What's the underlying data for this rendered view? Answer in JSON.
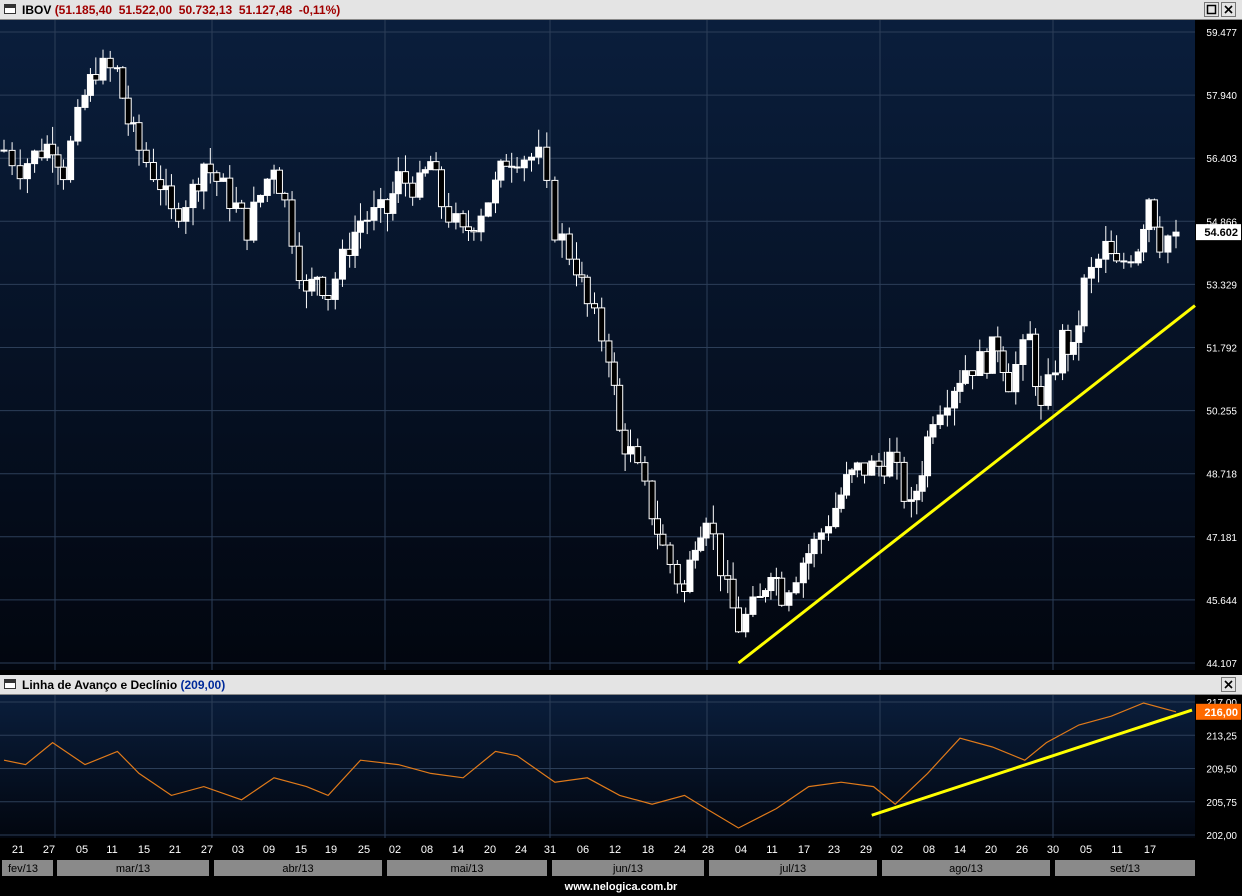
{
  "price_panel": {
    "symbol": "IBOV",
    "quote_text": "(51.185,40  51.522,00  50.732,13  51.127,48  -0,11%)",
    "price_badge": "54.602",
    "y_ticks": [
      "59.477",
      "57.940",
      "56.403",
      "54.866",
      "53.329",
      "51.792",
      "50.255",
      "48.718",
      "47.181",
      "45.644",
      "44.107"
    ]
  },
  "indicator_panel": {
    "title": "Linha de Avanço e Declínio",
    "value_text": "(209,00)",
    "value_badge": "216,00",
    "y_ticks": [
      "217,00",
      "213,25",
      "209,50",
      "205,75",
      "202,00"
    ]
  },
  "x_axis": {
    "day_labels": [
      "21",
      "27",
      "05",
      "11",
      "15",
      "21",
      "27",
      "03",
      "09",
      "15",
      "19",
      "25",
      "02",
      "08",
      "14",
      "20",
      "24",
      "31",
      "06",
      "12",
      "18",
      "24",
      "28",
      "04",
      "11",
      "17",
      "23",
      "29",
      "02",
      "08",
      "14",
      "20",
      "26",
      "30",
      "05",
      "11",
      "17"
    ],
    "month_labels": [
      "fev/13",
      "mar/13",
      "abr/13",
      "mai/13",
      "jun/13",
      "jul/13",
      "ago/13",
      "set/13"
    ]
  },
  "footer": {
    "url": "www.nelogica.com.br"
  },
  "colors": {
    "trendline": "#ffff00",
    "indicator_line": "#e07a1a",
    "badge_bg": "#ff6a00"
  },
  "chart_data": [
    {
      "type": "candlestick",
      "ylim": [
        44107,
        59477
      ],
      "trendline": [
        {
          "date": "04/07",
          "value": 44107
        },
        {
          "date": "23/09",
          "value": 52450
        }
      ],
      "close_series": [
        {
          "x": "18/02",
          "y": 56600
        },
        {
          "x": "21/02",
          "y": 56200
        },
        {
          "x": "25/02",
          "y": 56600
        },
        {
          "x": "27/02",
          "y": 56800
        },
        {
          "x": "01/03",
          "y": 56100
        },
        {
          "x": "05/03",
          "y": 57900
        },
        {
          "x": "07/03",
          "y": 58600
        },
        {
          "x": "11/03",
          "y": 58500
        },
        {
          "x": "13/03",
          "y": 57300
        },
        {
          "x": "15/03",
          "y": 56600
        },
        {
          "x": "19/03",
          "y": 55800
        },
        {
          "x": "21/03",
          "y": 55000
        },
        {
          "x": "25/03",
          "y": 55600
        },
        {
          "x": "27/03",
          "y": 56300
        },
        {
          "x": "02/04",
          "y": 55200
        },
        {
          "x": "04/04",
          "y": 54700
        },
        {
          "x": "09/04",
          "y": 56300
        },
        {
          "x": "11/04",
          "y": 55300
        },
        {
          "x": "15/04",
          "y": 53000
        },
        {
          "x": "17/04",
          "y": 53600
        },
        {
          "x": "19/04",
          "y": 53100
        },
        {
          "x": "23/04",
          "y": 54300
        },
        {
          "x": "25/04",
          "y": 54900
        },
        {
          "x": "30/04",
          "y": 55100
        },
        {
          "x": "02/05",
          "y": 55900
        },
        {
          "x": "06/05",
          "y": 55700
        },
        {
          "x": "08/05",
          "y": 56300
        },
        {
          "x": "10/05",
          "y": 55300
        },
        {
          "x": "14/05",
          "y": 54500
        },
        {
          "x": "16/05",
          "y": 54900
        },
        {
          "x": "20/05",
          "y": 55700
        },
        {
          "x": "22/05",
          "y": 56400
        },
        {
          "x": "24/05",
          "y": 56500
        },
        {
          "x": "28/05",
          "y": 56400
        },
        {
          "x": "31/05",
          "y": 54700
        },
        {
          "x": "04/06",
          "y": 53800
        },
        {
          "x": "06/06",
          "y": 52800
        },
        {
          "x": "10/06",
          "y": 51700
        },
        {
          "x": "12/06",
          "y": 49700
        },
        {
          "x": "14/06",
          "y": 49200
        },
        {
          "x": "18/06",
          "y": 47800
        },
        {
          "x": "20/06",
          "y": 46900
        },
        {
          "x": "24/06",
          "y": 45800
        },
        {
          "x": "26/06",
          "y": 47200
        },
        {
          "x": "28/06",
          "y": 47800
        },
        {
          "x": "02/07",
          "y": 45800
        },
        {
          "x": "04/07",
          "y": 45000
        },
        {
          "x": "08/07",
          "y": 45600
        },
        {
          "x": "10/07",
          "y": 46500
        },
        {
          "x": "12/07",
          "y": 45800
        },
        {
          "x": "16/07",
          "y": 46600
        },
        {
          "x": "18/07",
          "y": 47000
        },
        {
          "x": "22/07",
          "y": 47900
        },
        {
          "x": "24/07",
          "y": 48500
        },
        {
          "x": "26/07",
          "y": 48800
        },
        {
          "x": "30/07",
          "y": 48900
        },
        {
          "x": "01/08",
          "y": 49100
        },
        {
          "x": "05/08",
          "y": 47800
        },
        {
          "x": "07/08",
          "y": 48900
        },
        {
          "x": "09/08",
          "y": 50200
        },
        {
          "x": "13/08",
          "y": 50900
        },
        {
          "x": "15/08",
          "y": 51300
        },
        {
          "x": "19/08",
          "y": 51500
        },
        {
          "x": "21/08",
          "y": 51900
        },
        {
          "x": "23/08",
          "y": 51000
        },
        {
          "x": "27/08",
          "y": 52000
        },
        {
          "x": "29/08",
          "y": 50200
        },
        {
          "x": "02/09",
          "y": 52000
        },
        {
          "x": "04/09",
          "y": 51600
        },
        {
          "x": "06/09",
          "y": 53300
        },
        {
          "x": "10/09",
          "y": 54200
        },
        {
          "x": "12/09",
          "y": 53700
        },
        {
          "x": "16/09",
          "y": 54300
        },
        {
          "x": "18/09",
          "y": 55500
        },
        {
          "x": "20/09",
          "y": 54400
        },
        {
          "x": "23/09",
          "y": 54602
        }
      ]
    },
    {
      "type": "line",
      "series_name": "Linha de Avanço e Declínio",
      "ylim": [
        202.0,
        217.0
      ],
      "trendline": [
        {
          "date": "01/08",
          "value": 204.7
        },
        {
          "date": "23/09",
          "value": 216.2
        }
      ],
      "x": [
        "18/02",
        "22/02",
        "27/02",
        "05/03",
        "11/03",
        "15/03",
        "21/03",
        "27/03",
        "03/04",
        "09/04",
        "15/04",
        "19/04",
        "25/04",
        "02/05",
        "08/05",
        "14/05",
        "20/05",
        "24/05",
        "31/05",
        "06/06",
        "12/06",
        "18/06",
        "24/06",
        "28/06",
        "04/07",
        "11/07",
        "17/07",
        "23/07",
        "29/07",
        "02/08",
        "08/08",
        "14/08",
        "20/08",
        "26/08",
        "30/08",
        "05/09",
        "11/09",
        "17/09",
        "23/09"
      ],
      "values": [
        210.5,
        210.0,
        212.5,
        210.0,
        211.5,
        209.0,
        206.5,
        207.5,
        206.0,
        208.5,
        207.5,
        206.5,
        210.5,
        210.0,
        209.0,
        208.5,
        211.5,
        211.0,
        208.0,
        208.5,
        206.5,
        205.5,
        206.5,
        205.0,
        202.8,
        205.0,
        207.5,
        208.0,
        207.5,
        205.5,
        209.0,
        213.0,
        212.0,
        210.5,
        212.5,
        214.5,
        215.5,
        217.0,
        216.0
      ]
    }
  ]
}
